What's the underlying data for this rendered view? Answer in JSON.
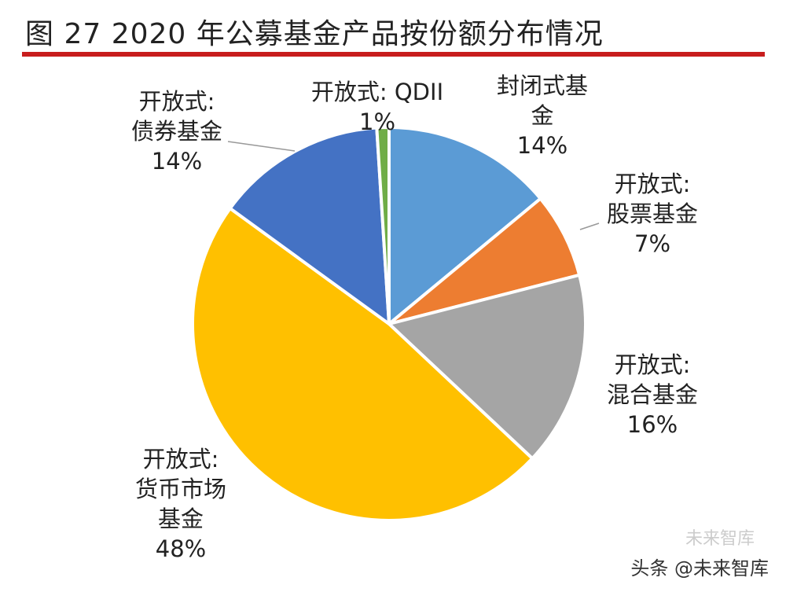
{
  "title": "图 27   2020 年公募基金产品按份额分布情况",
  "watermark": "头条 @未来智库",
  "watermark_logo": "未来智库",
  "chart_data": {
    "type": "pie",
    "title": "图 27   2020 年公募基金产品按份额分布情况",
    "start": "12 o'clock, clockwise",
    "slices": [
      {
        "label": "封闭式基\n金",
        "value": 14,
        "pct_label": "14%",
        "color": "#5B9BD5"
      },
      {
        "label": "开放式:\n股票基金",
        "value": 7,
        "pct_label": "7%",
        "color": "#ED7D31"
      },
      {
        "label": "开放式:\n混合基金",
        "value": 16,
        "pct_label": "16%",
        "color": "#A5A5A5"
      },
      {
        "label": "开放式:\n货币市场\n基金",
        "value": 48,
        "pct_label": "48%",
        "color": "#FFC000"
      },
      {
        "label": "开放式:\n债券基金",
        "value": 14,
        "pct_label": "14%",
        "color": "#4472C4"
      },
      {
        "label": "开放式: QDII",
        "value": 1,
        "pct_label": "1%",
        "color": "#70AD47"
      }
    ]
  }
}
